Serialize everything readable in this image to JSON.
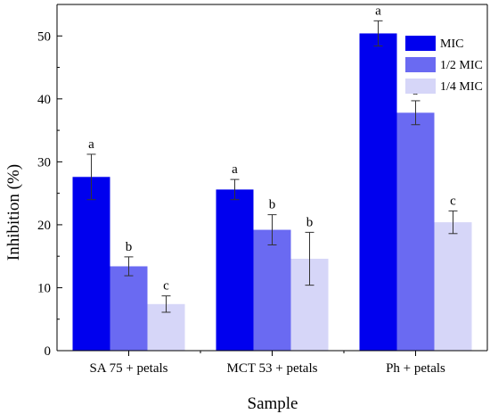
{
  "chart_data": {
    "type": "bar",
    "xlabel": "Sample",
    "ylabel": "Inhibition (%)",
    "ylim": [
      0,
      55
    ],
    "yticks": [
      0,
      10,
      20,
      30,
      40,
      50
    ],
    "categories": [
      "SA 75 + petals",
      "MCT 53 + petals",
      "Ph + petals"
    ],
    "series": [
      {
        "name": "MIC",
        "color": "#0000ee",
        "values": [
          27.6,
          25.6,
          50.4
        ],
        "errors": [
          3.6,
          1.6,
          2.0
        ],
        "labels": [
          "a",
          "a",
          "a"
        ]
      },
      {
        "name": "1/2 MIC",
        "color": "#6a6af2",
        "values": [
          13.4,
          19.2,
          37.8
        ],
        "errors": [
          1.5,
          2.4,
          1.9
        ],
        "labels": [
          "b",
          "b",
          "b"
        ]
      },
      {
        "name": "1/4 MIC",
        "color": "#d6d6f8",
        "values": [
          7.4,
          14.6,
          20.4
        ],
        "errors": [
          1.3,
          4.2,
          1.8
        ],
        "labels": [
          "c",
          "b",
          "c"
        ]
      }
    ],
    "legend": {
      "position": "top-right"
    },
    "grid": false
  }
}
